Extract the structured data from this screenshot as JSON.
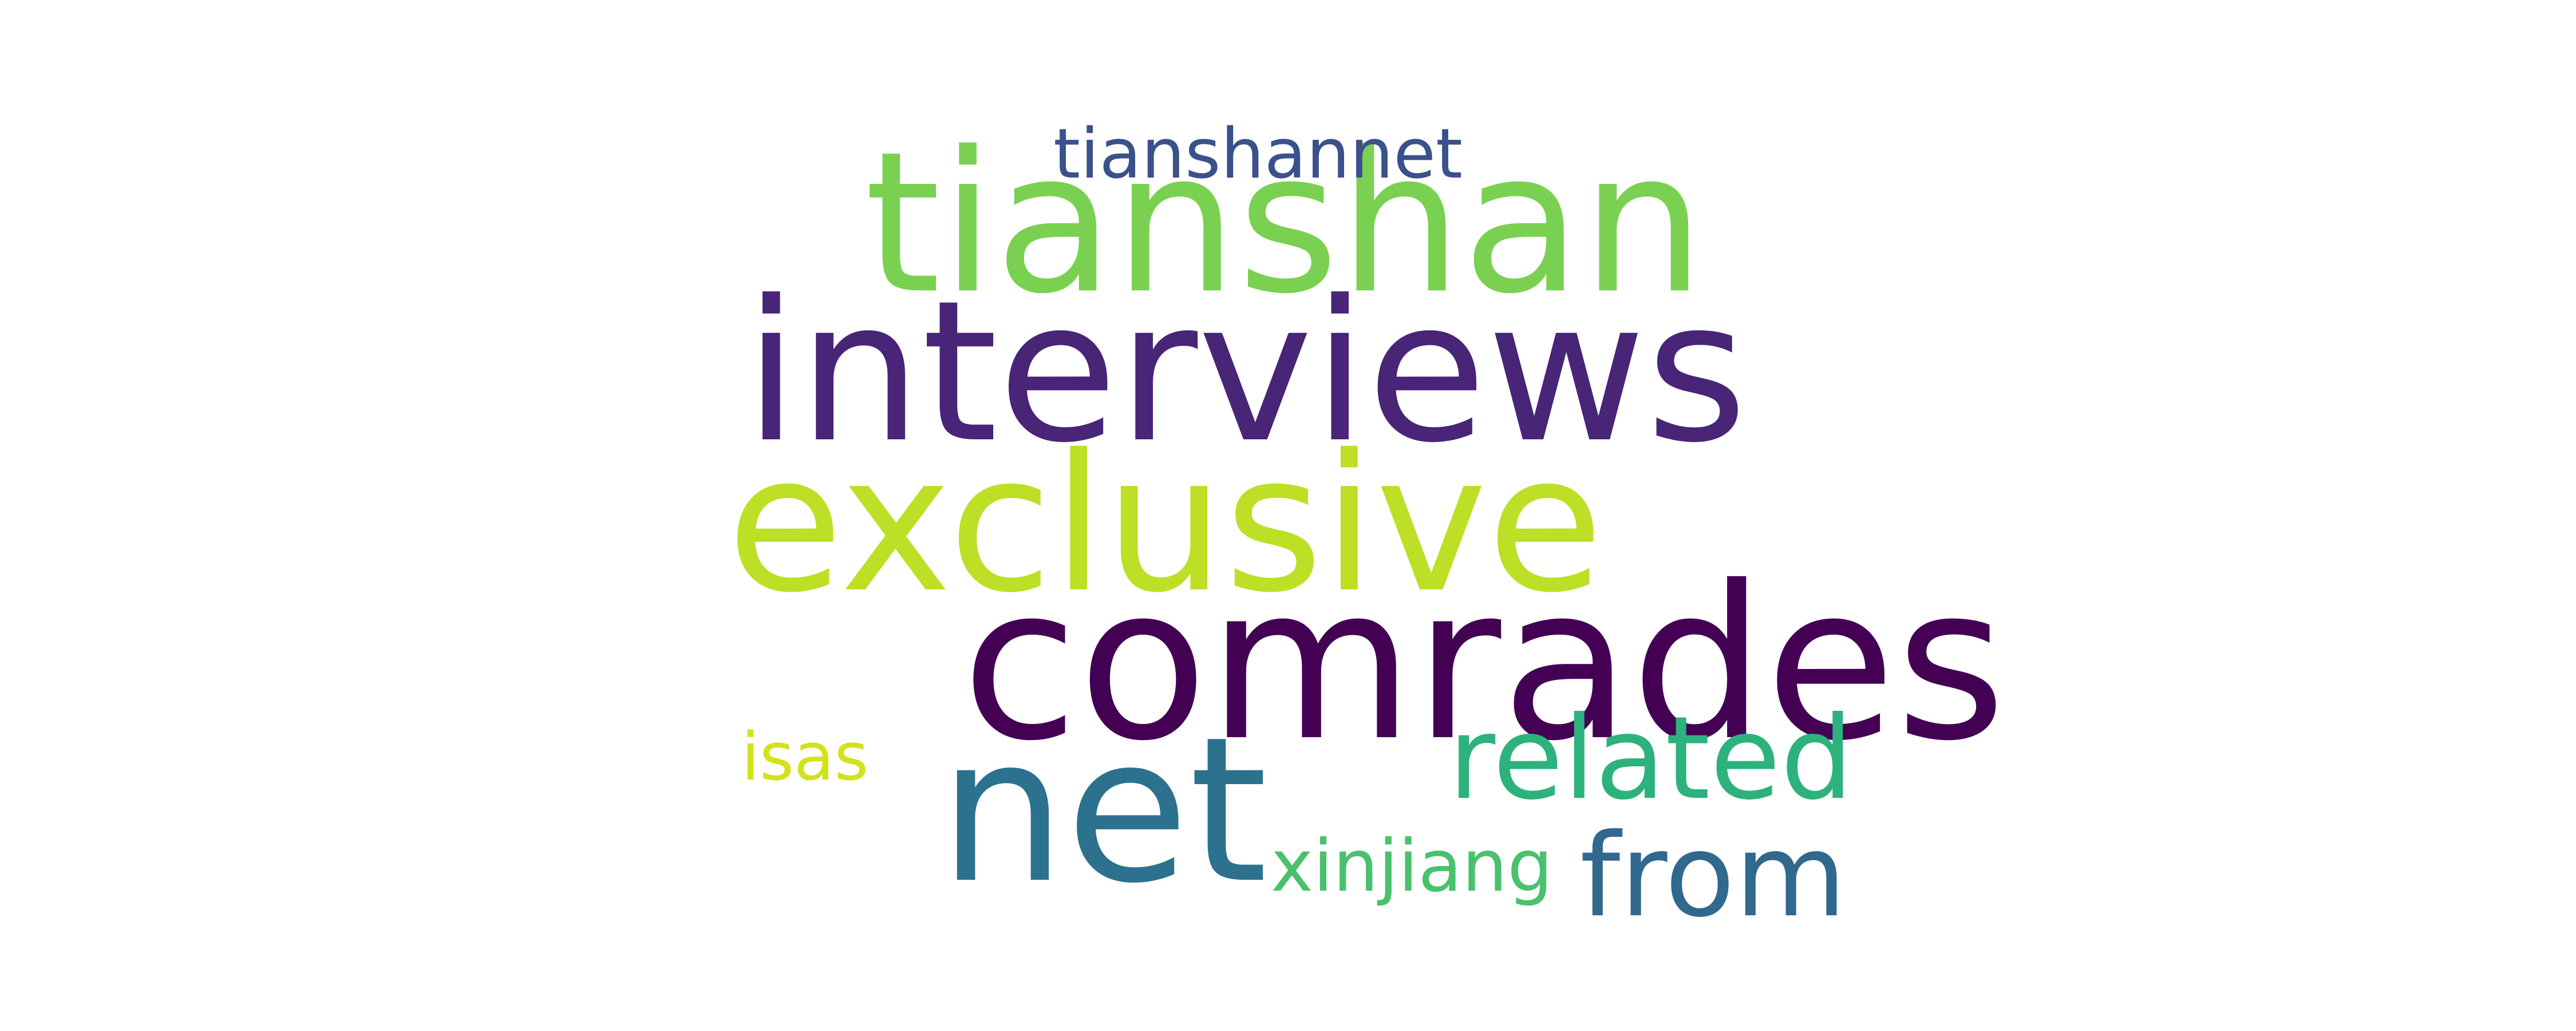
{
  "words": {
    "tianshan": {
      "text": "tianshan",
      "color": "#7ad151"
    },
    "tianshannet": {
      "text": "tianshannet",
      "color": "#3b518b"
    },
    "interviews": {
      "text": "interviews",
      "color": "#482576"
    },
    "exclusive": {
      "text": "exclusive",
      "color": "#bddf26"
    },
    "comrades": {
      "text": "comrades",
      "color": "#440154"
    },
    "related": {
      "text": "related",
      "color": "#2db27d"
    },
    "isas": {
      "text": "isas",
      "color": "#d2e21b"
    },
    "net": {
      "text": "net",
      "color": "#2c728e"
    },
    "xinjiang": {
      "text": "xinjiang",
      "color": "#4ac16d"
    },
    "from": {
      "text": "from",
      "color": "#31688e"
    }
  }
}
